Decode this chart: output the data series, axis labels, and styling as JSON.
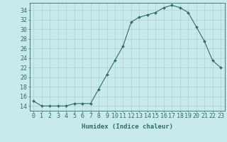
{
  "x": [
    0,
    1,
    2,
    3,
    4,
    5,
    6,
    7,
    8,
    9,
    10,
    11,
    12,
    13,
    14,
    15,
    16,
    17,
    18,
    19,
    20,
    21,
    22,
    23
  ],
  "y": [
    15.0,
    14.0,
    14.0,
    14.0,
    14.0,
    14.5,
    14.5,
    14.5,
    17.5,
    20.5,
    23.5,
    26.5,
    31.5,
    32.5,
    33.0,
    33.5,
    34.5,
    35.0,
    34.5,
    33.5,
    30.5,
    27.5,
    23.5,
    22.0
  ],
  "line_color": "#2d6e6e",
  "marker_color": "#2d6e6e",
  "bg_color": "#c8eaea",
  "grid_color": "#b0d0d0",
  "xlabel": "Humidex (Indice chaleur)",
  "ylabel_ticks": [
    14,
    16,
    18,
    20,
    22,
    24,
    26,
    28,
    30,
    32,
    34
  ],
  "ylim": [
    13.0,
    35.5
  ],
  "xlim": [
    -0.5,
    23.5
  ],
  "tick_color": "#2d6e6e",
  "axis_color": "#2d6e6e",
  "font_color": "#2d6e6e",
  "label_fontsize": 6.5,
  "tick_fontsize": 6.0
}
